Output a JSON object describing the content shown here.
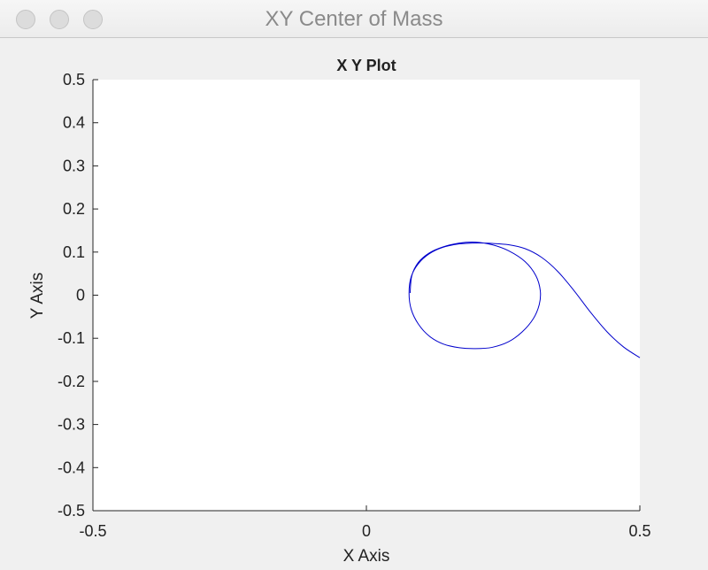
{
  "window": {
    "title": "XY Center of Mass"
  },
  "chart_data": {
    "type": "line",
    "title": "X Y Plot",
    "xlabel": "X Axis",
    "ylabel": "Y Axis",
    "xlim": [
      -0.5,
      0.5
    ],
    "ylim": [
      -0.5,
      0.5
    ],
    "xticks": [
      -0.5,
      0,
      0.5
    ],
    "xtick_labels": [
      "-0.5",
      "0",
      "0.5"
    ],
    "yticks": [
      -0.5,
      -0.4,
      -0.3,
      -0.2,
      -0.1,
      0,
      0.1,
      0.2,
      0.3,
      0.4,
      0.5
    ],
    "ytick_labels": [
      "-0.5",
      "-0.4",
      "-0.3",
      "-0.2",
      "-0.1",
      "0",
      "0.1",
      "0.2",
      "0.3",
      "0.4",
      "0.5"
    ],
    "grid": false,
    "series": [
      {
        "color": "#0000cc",
        "x": [
          0.5,
          0.47,
          0.44,
          0.41,
          0.38,
          0.35,
          0.32,
          0.29,
          0.26,
          0.23,
          0.2,
          0.17,
          0.14,
          0.115,
          0.095,
          0.082,
          0.078,
          0.082,
          0.095,
          0.115,
          0.14,
          0.17,
          0.2,
          0.23,
          0.26,
          0.285,
          0.305,
          0.316,
          0.318,
          0.31,
          0.29,
          0.26,
          0.23,
          0.2,
          0.17,
          0.14,
          0.115,
          0.095,
          0.083,
          0.08
        ],
        "y": [
          -0.145,
          -0.12,
          -0.085,
          -0.04,
          0.01,
          0.055,
          0.088,
          0.108,
          0.117,
          0.12,
          0.121,
          0.119,
          0.111,
          0.096,
          0.073,
          0.043,
          0.005,
          -0.033,
          -0.067,
          -0.095,
          -0.113,
          -0.122,
          -0.124,
          -0.121,
          -0.108,
          -0.085,
          -0.055,
          -0.022,
          0.01,
          0.045,
          0.078,
          0.103,
          0.117,
          0.123,
          0.121,
          0.112,
          0.098,
          0.076,
          0.045,
          0.005
        ]
      }
    ]
  }
}
